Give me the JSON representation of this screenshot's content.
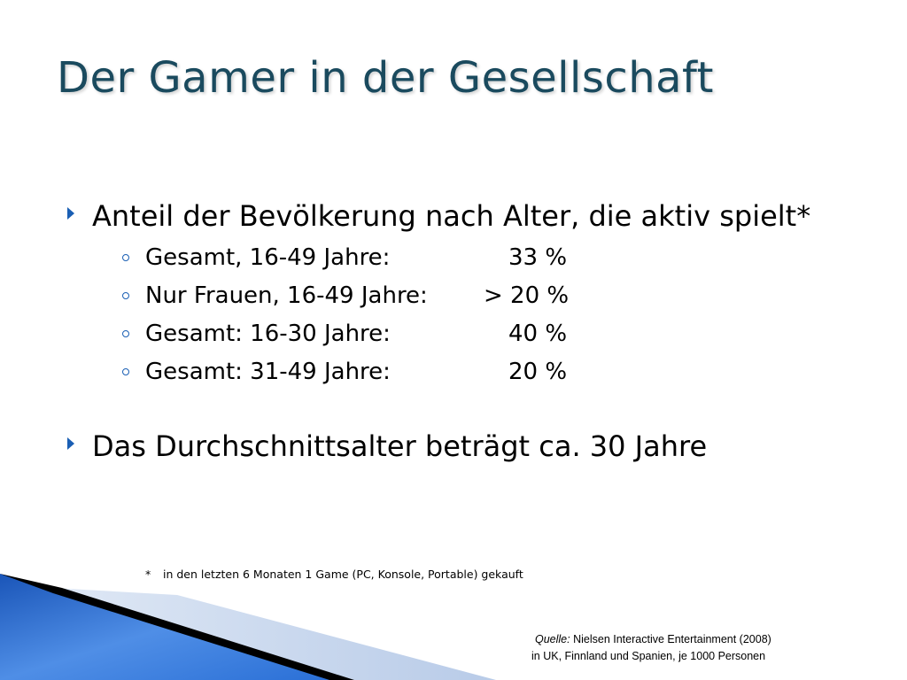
{
  "title": "Der Gamer in der Gesellschaft",
  "bullets": [
    {
      "text": "Anteil der Bevölkerung nach Alter, die aktiv spielt*",
      "sub": [
        {
          "label": "Gesamt, 16-49 Jahre:",
          "value": "33 %"
        },
        {
          "label": "Nur Frauen, 16-49 Jahre:",
          "value": "> 20 %"
        },
        {
          "label": "Gesamt: 16-30 Jahre:",
          "value": "40 %"
        },
        {
          "label": "Gesamt: 31-49 Jahre:",
          "value": "20 %"
        }
      ]
    },
    {
      "text": "Das Durchschnittsalter beträgt ca. 30 Jahre"
    }
  ],
  "footnote": {
    "marker": "*",
    "text": "in den letzten 6 Monaten 1 Game (PC, Konsole, Portable) gekauft"
  },
  "source": {
    "label": "Quelle:",
    "line1": "Nielsen Interactive Entertainment (2008)",
    "line2": "in UK, Finnland und Spanien, je 1000 Personen"
  },
  "colors": {
    "title": "#1a4a5e",
    "bullet_marker": "#1a5fb4",
    "corner_blue": "#2a6fd6",
    "corner_black": "#000000",
    "corner_light": "#c9d8ee"
  },
  "icons": {
    "bullet": "triangle-right-icon",
    "sub_bullet": "circle-outline-icon"
  }
}
